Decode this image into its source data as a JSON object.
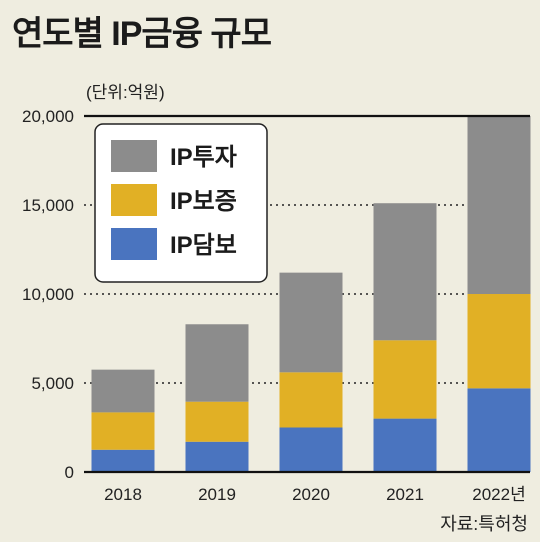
{
  "title": "연도별 IP금융 규모",
  "unit": "(단위:억원)",
  "source": "자료:특허청",
  "colors": {
    "background": "#efede0",
    "IP투자": "#8c8c8c",
    "IP보증": "#e1b025",
    "IP담보": "#4a74bf"
  },
  "chart_data": {
    "type": "bar",
    "stacked": true,
    "categories": [
      "2018",
      "2019",
      "2020",
      "2021",
      "2022년"
    ],
    "series": [
      {
        "name": "IP담보",
        "values": [
          1250,
          1700,
          2500,
          3000,
          4700
        ]
      },
      {
        "name": "IP보증",
        "values": [
          2100,
          2250,
          3100,
          4400,
          5300
        ]
      },
      {
        "name": "IP투자",
        "values": [
          2400,
          4350,
          5600,
          7700,
          10000
        ]
      }
    ],
    "legend_order": [
      "IP투자",
      "IP보증",
      "IP담보"
    ],
    "ylim": [
      0,
      20000
    ],
    "yticks": [
      0,
      5000,
      10000,
      15000,
      20000
    ],
    "ytick_labels": [
      "0",
      "5,000",
      "10,000",
      "15,000",
      "20,000"
    ],
    "grid": "dotted horizontal",
    "legend_position": "top-left"
  }
}
